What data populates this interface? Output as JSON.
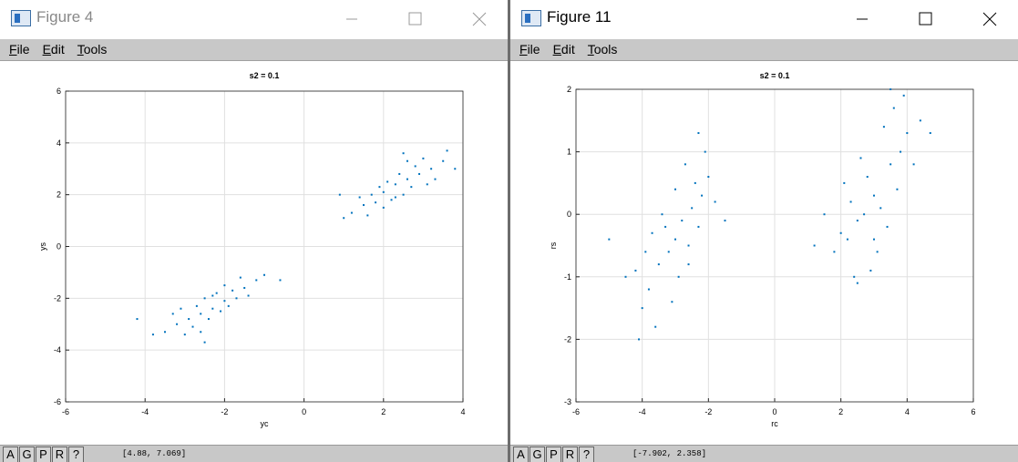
{
  "windows": [
    {
      "title": "Figure 4",
      "menu": [
        "File",
        "Edit",
        "Tools"
      ],
      "buttons": [
        "A",
        "G",
        "P",
        "R",
        "?"
      ],
      "status": "[4.88, 7.069]"
    },
    {
      "title": "Figure 11",
      "menu": [
        "File",
        "Edit",
        "Tools"
      ],
      "buttons": [
        "A",
        "G",
        "P",
        "R",
        "?"
      ],
      "status": "[-7.902, 2.358]"
    }
  ],
  "chart_data": [
    {
      "type": "scatter",
      "title": "s2 = 0.1",
      "xlabel": "yc",
      "ylabel": "ys",
      "xlim": [
        -6,
        4
      ],
      "xticks": [
        -6,
        -4,
        -2,
        0,
        2,
        4
      ],
      "ylim": [
        -6,
        6
      ],
      "yticks": [
        -6,
        -4,
        -2,
        0,
        2,
        4,
        6
      ],
      "grid": true,
      "series": [
        {
          "color": "#0072bd",
          "x": [
            -2.3,
            -2.0,
            -2.6,
            -1.8,
            -2.9,
            -1.5,
            -3.2,
            -2.1,
            -2.5,
            -1.2,
            -3.5,
            -2.7,
            -1.9,
            -2.4,
            -1.6,
            -3.0,
            -2.2,
            -3.8,
            -1.0,
            -2.8,
            -1.4,
            -3.3,
            -2.0,
            -2.6,
            -4.2,
            -0.6,
            -1.7,
            -3.1,
            -2.3,
            -2.5,
            2.3,
            2.0,
            2.6,
            1.8,
            2.9,
            1.5,
            3.2,
            2.1,
            2.5,
            1.2,
            3.5,
            2.7,
            1.9,
            2.4,
            1.6,
            3.0,
            2.2,
            3.6,
            1.0,
            2.8,
            1.4,
            3.3,
            2.0,
            2.6,
            0.9,
            3.8,
            1.7,
            3.1,
            2.3,
            2.5
          ],
          "y": [
            -2.4,
            -2.1,
            -2.6,
            -1.7,
            -2.8,
            -1.6,
            -3.0,
            -2.5,
            -2.0,
            -1.3,
            -3.3,
            -2.3,
            -2.3,
            -2.8,
            -1.2,
            -3.4,
            -1.8,
            -3.4,
            -1.1,
            -3.1,
            -1.9,
            -2.6,
            -1.5,
            -3.3,
            -2.8,
            -1.3,
            -2.0,
            -2.4,
            -1.9,
            -3.7,
            2.4,
            2.1,
            2.6,
            1.7,
            2.8,
            1.6,
            3.0,
            2.5,
            2.0,
            1.3,
            3.3,
            2.3,
            2.3,
            2.8,
            1.2,
            3.4,
            1.8,
            3.7,
            1.1,
            3.1,
            1.9,
            2.6,
            1.5,
            3.3,
            2.0,
            3.0,
            2.0,
            2.4,
            1.9,
            3.6
          ]
        }
      ]
    },
    {
      "type": "scatter",
      "title": "s2 = 0.1",
      "xlabel": "rc",
      "ylabel": "rs",
      "xlim": [
        -6,
        6
      ],
      "xticks": [
        -6,
        -4,
        -2,
        0,
        2,
        4,
        6
      ],
      "ylim": [
        -3,
        2
      ],
      "yticks": [
        -3,
        -2,
        -1,
        0,
        1,
        2
      ],
      "grid": true,
      "series": [
        {
          "color": "#0072bd",
          "x": [
            -3.0,
            -2.5,
            -3.5,
            -2.2,
            -3.8,
            -2.8,
            -3.2,
            -2.0,
            -4.0,
            -2.6,
            -3.4,
            -2.9,
            -3.7,
            -2.3,
            -4.2,
            -2.7,
            -3.1,
            -1.8,
            -3.6,
            -2.4,
            -4.1,
            -2.1,
            -3.3,
            -4.5,
            -1.5,
            -3.9,
            -2.6,
            -3.0,
            -5.0,
            -2.3,
            3.0,
            3.5,
            2.5,
            3.8,
            2.2,
            3.2,
            2.8,
            4.0,
            2.0,
            3.4,
            2.6,
            3.1,
            2.3,
            3.7,
            1.8,
            3.3,
            2.9,
            4.2,
            2.4,
            3.6,
            1.5,
            4.4,
            2.7,
            3.9,
            2.1,
            3.0,
            1.2,
            4.7,
            2.5,
            3.5
          ],
          "y": [
            -0.4,
            0.1,
            -0.8,
            0.3,
            -1.2,
            -0.1,
            -0.6,
            0.6,
            -1.5,
            -0.5,
            0.0,
            -1.0,
            -0.3,
            -0.2,
            -0.9,
            0.8,
            -1.4,
            0.2,
            -1.8,
            0.5,
            -2.0,
            1.0,
            -0.2,
            -1.0,
            -0.1,
            -0.6,
            -0.8,
            0.4,
            -0.4,
            1.3,
            0.3,
            0.8,
            -0.1,
            1.0,
            -0.4,
            0.1,
            0.6,
            1.3,
            -0.3,
            -0.2,
            0.9,
            -0.6,
            0.2,
            0.4,
            -0.6,
            1.4,
            -0.9,
            0.8,
            -1.0,
            1.7,
            0.0,
            1.5,
            0.0,
            1.9,
            0.5,
            -0.4,
            -0.5,
            1.3,
            -1.1,
            2.0
          ]
        }
      ]
    }
  ]
}
